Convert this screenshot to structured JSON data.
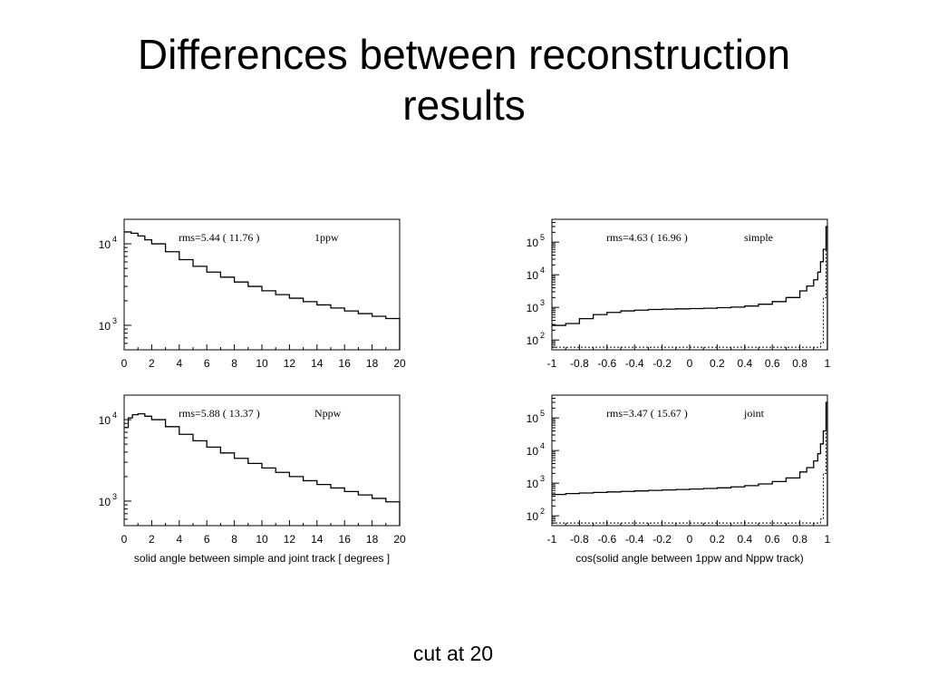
{
  "slide": {
    "title_line1": "Differences between reconstruction",
    "title_line2": "results",
    "footnote": "cut at 20"
  },
  "colors": {
    "line": "#000000",
    "background": "#ffffff"
  },
  "chart_data": [
    {
      "id": "angle-1ppw",
      "type": "line",
      "style": "histogram",
      "title": "",
      "stats_text": "rms=5.44 ( 11.76 )",
      "label": "1ppw",
      "xlabel": "",
      "ylabel": "",
      "xlim": [
        0,
        20
      ],
      "ylim_log": [
        500,
        20000
      ],
      "y_scale": "log",
      "xticks": [
        "0",
        "2",
        "4",
        "6",
        "8",
        "10",
        "12",
        "14",
        "16",
        "18",
        "20"
      ],
      "yticks": [
        {
          "value": 1000,
          "label": "10",
          "exp": "3"
        },
        {
          "value": 10000,
          "label": "10",
          "exp": "4"
        }
      ],
      "x": [
        0,
        0.5,
        1,
        1.5,
        2,
        3,
        4,
        5,
        6,
        7,
        8,
        9,
        10,
        11,
        12,
        13,
        14,
        15,
        16,
        17,
        18,
        19,
        20
      ],
      "y": [
        14000,
        13500,
        12500,
        11200,
        10000,
        8000,
        6400,
        5300,
        4500,
        3900,
        3400,
        3000,
        2650,
        2380,
        2150,
        1950,
        1780,
        1630,
        1500,
        1390,
        1290,
        1210,
        1120
      ]
    },
    {
      "id": "cos-simple",
      "type": "line",
      "style": "histogram",
      "title": "",
      "stats_text": "rms=4.63 ( 16.96 )",
      "label": "simple",
      "xlabel": "",
      "ylabel": "",
      "xlim": [
        -1,
        1
      ],
      "ylim_log": [
        50,
        500000
      ],
      "y_scale": "log",
      "xticks": [
        "-1",
        "-0.8",
        "-0.6",
        "-0.4",
        "-0.2",
        "0",
        "0.2",
        "0.4",
        "0.6",
        "0.8",
        "1"
      ],
      "yticks": [
        {
          "value": 100,
          "label": "10",
          "exp": "2"
        },
        {
          "value": 1000,
          "label": "10",
          "exp": "3"
        },
        {
          "value": 10000,
          "label": "10",
          "exp": "4"
        },
        {
          "value": 100000,
          "label": "10",
          "exp": "5"
        }
      ],
      "x": [
        -1,
        -0.9,
        -0.8,
        -0.7,
        -0.6,
        -0.5,
        -0.4,
        -0.3,
        -0.2,
        -0.1,
        0,
        0.1,
        0.2,
        0.3,
        0.4,
        0.5,
        0.6,
        0.7,
        0.8,
        0.85,
        0.9,
        0.93,
        0.95,
        0.97,
        0.99,
        1
      ],
      "y": [
        280,
        320,
        450,
        600,
        700,
        780,
        820,
        860,
        880,
        900,
        920,
        940,
        980,
        1020,
        1100,
        1250,
        1500,
        2000,
        3200,
        4500,
        7000,
        12000,
        25000,
        60000,
        300000,
        300000
      ],
      "series2_y": [
        60,
        60,
        60,
        60,
        60,
        60,
        60,
        60,
        60,
        60,
        60,
        60,
        60,
        60,
        60,
        60,
        60,
        60,
        60,
        60,
        60,
        60,
        80,
        2000,
        300000,
        300000
      ]
    },
    {
      "id": "angle-nppw",
      "type": "line",
      "style": "histogram",
      "title": "",
      "stats_text": "rms=5.88 ( 13.37 )",
      "label": "Nppw",
      "xlabel": "solid angle between simple and joint track [ degrees ]",
      "ylabel": "",
      "xlim": [
        0,
        20
      ],
      "ylim_log": [
        500,
        20000
      ],
      "y_scale": "log",
      "xticks": [
        "0",
        "2",
        "4",
        "6",
        "8",
        "10",
        "12",
        "14",
        "16",
        "18",
        "20"
      ],
      "yticks": [
        {
          "value": 1000,
          "label": "10",
          "exp": "3"
        },
        {
          "value": 10000,
          "label": "10",
          "exp": "4"
        }
      ],
      "x": [
        0,
        0.3,
        0.6,
        1,
        1.5,
        2,
        3,
        4,
        5,
        6,
        7,
        8,
        9,
        10,
        11,
        12,
        13,
        14,
        15,
        16,
        17,
        18,
        19,
        20
      ],
      "y": [
        8000,
        10500,
        11500,
        11800,
        11000,
        10000,
        8200,
        6600,
        5500,
        4600,
        3900,
        3350,
        2900,
        2550,
        2250,
        2000,
        1780,
        1600,
        1450,
        1310,
        1190,
        1080,
        980,
        900
      ]
    },
    {
      "id": "cos-joint",
      "type": "line",
      "style": "histogram",
      "title": "",
      "stats_text": "rms=3.47 ( 15.67 )",
      "label": "joint",
      "xlabel": "cos(solid angle between 1ppw and Nppw track)",
      "ylabel": "",
      "xlim": [
        -1,
        1
      ],
      "ylim_log": [
        50,
        500000
      ],
      "y_scale": "log",
      "xticks": [
        "-1",
        "-0.8",
        "-0.6",
        "-0.4",
        "-0.2",
        "0",
        "0.2",
        "0.4",
        "0.6",
        "0.8",
        "1"
      ],
      "yticks": [
        {
          "value": 100,
          "label": "10",
          "exp": "2"
        },
        {
          "value": 1000,
          "label": "10",
          "exp": "3"
        },
        {
          "value": 10000,
          "label": "10",
          "exp": "4"
        },
        {
          "value": 100000,
          "label": "10",
          "exp": "5"
        }
      ],
      "x": [
        -1,
        -0.9,
        -0.8,
        -0.7,
        -0.6,
        -0.5,
        -0.4,
        -0.3,
        -0.2,
        -0.1,
        0,
        0.1,
        0.2,
        0.3,
        0.4,
        0.5,
        0.6,
        0.7,
        0.8,
        0.85,
        0.9,
        0.93,
        0.95,
        0.97,
        0.99,
        1
      ],
      "y": [
        450,
        480,
        500,
        520,
        540,
        560,
        580,
        600,
        620,
        640,
        660,
        690,
        720,
        770,
        840,
        950,
        1120,
        1450,
        2200,
        3000,
        4800,
        8000,
        16000,
        40000,
        300000,
        300000
      ],
      "series2_y": [
        60,
        60,
        60,
        60,
        60,
        60,
        60,
        60,
        60,
        60,
        60,
        60,
        60,
        60,
        60,
        60,
        60,
        60,
        60,
        60,
        60,
        60,
        80,
        2000,
        300000,
        300000
      ]
    }
  ]
}
